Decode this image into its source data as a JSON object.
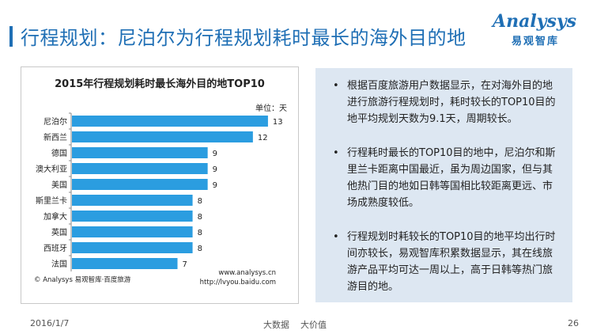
{
  "header": {
    "title": "行程规划：尼泊尔为行程规划耗时最长的海外目的地",
    "logo_text": "Analysys",
    "logo_sub": "易观智库"
  },
  "chart_data": {
    "type": "bar",
    "orientation": "horizontal",
    "title": "2015年行程规划耗时最长海外目的地TOP10",
    "unit_label": "单位：天",
    "categories": [
      "尼泊尔",
      "新西兰",
      "德国",
      "澳大利亚",
      "美国",
      "斯里兰卡",
      "加拿大",
      "英国",
      "西班牙",
      "法国"
    ],
    "values": [
      13,
      12,
      9,
      9,
      9,
      8,
      8,
      8,
      8,
      7
    ],
    "xlim": [
      0,
      14
    ],
    "bar_color": "#2b9de0",
    "source_left": "© Analysys 易观智库·百度旅游",
    "source_right_1": "www.analysys.cn",
    "source_right_2": "http://lvyou.baidu.com"
  },
  "panel": {
    "bullet_char": "•",
    "bullets": [
      "根据百度旅游用户数据显示，在对海外目的地进行旅游行程规划时，耗时较长的TOP10目的地平均规划天数为9.1天，周期较长。",
      "行程耗时最长的TOP10目的地中，尼泊尔和斯里兰卡距离中国最近，虽为周边国家，但与其他热门目的地如日韩等国相比较距离更远、市场成熟度较低。",
      "行程规划时耗较长的TOP10目的地平均出行时间亦较长，易观智库积累数据显示，其在线旅游产品平均可达一周以上，高于日韩等热门旅游目的地。"
    ]
  },
  "footer": {
    "date": "2016/1/7",
    "slogan_1": "大数据",
    "slogan_2": "大价值",
    "page_number": "26"
  },
  "colors": {
    "accent": "#1f6fb5",
    "panel_bg": "#dde7f2"
  }
}
